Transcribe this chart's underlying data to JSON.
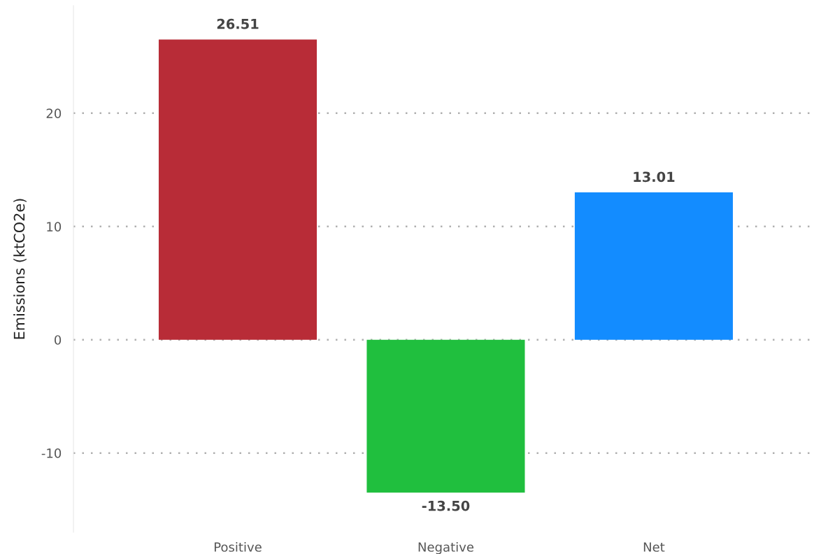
{
  "chart_data": {
    "type": "bar",
    "ylabel": "Emissions (ktCO2e)",
    "categories": [
      "Positive",
      "Negative",
      "Net"
    ],
    "values": [
      26.51,
      -13.5,
      13.01
    ],
    "colors": [
      "#b82c37",
      "#20bf3e",
      "#138cff"
    ],
    "value_labels": [
      "26.51",
      "-13.50",
      "13.01"
    ],
    "ylim": [
      -17,
      29.5
    ],
    "yticks": [
      -10,
      0,
      10,
      20
    ],
    "grid": "y"
  }
}
